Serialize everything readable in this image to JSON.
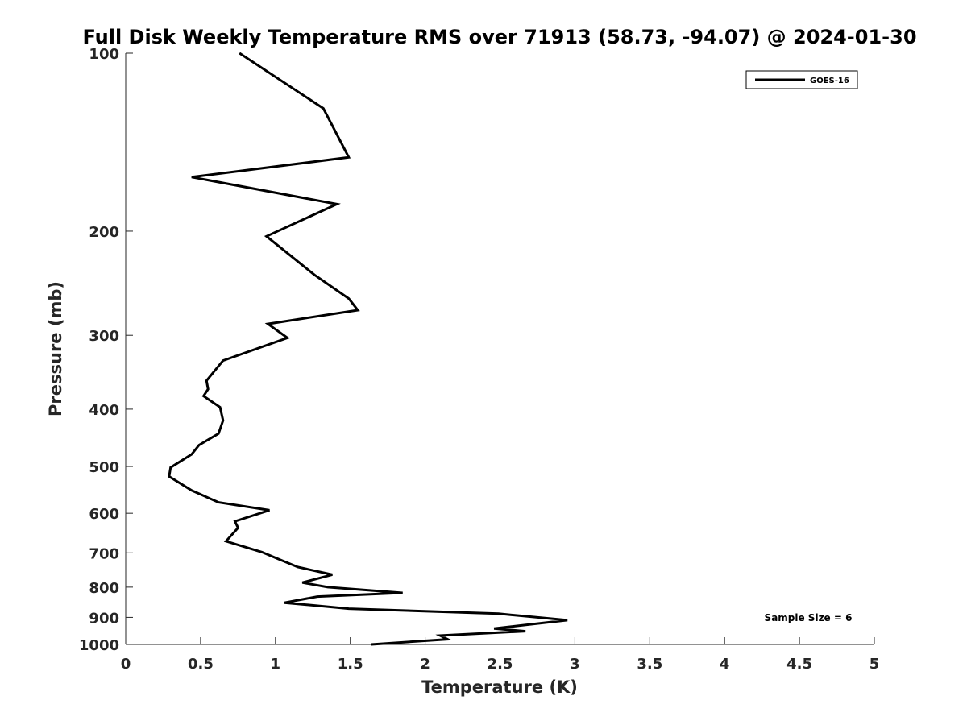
{
  "chart_data": {
    "type": "line",
    "title": "Full Disk Weekly Temperature RMS over 71913 (58.73, -94.07) @ 2024-01-30",
    "xlabel": "Temperature (K)",
    "ylabel": "Pressure (mb)",
    "xlim": [
      0,
      5
    ],
    "ylim": [
      100,
      1000
    ],
    "y_scale": "log",
    "y_reversed": true,
    "grid": false,
    "x_ticks": [
      0,
      0.5,
      1,
      1.5,
      2,
      2.5,
      3,
      3.5,
      4,
      4.5,
      5
    ],
    "x_tick_labels": [
      "0",
      "0.5",
      "1",
      "1.5",
      "2",
      "2.5",
      "3",
      "3.5",
      "4",
      "4.5",
      "5"
    ],
    "y_ticks": [
      100,
      200,
      300,
      400,
      500,
      600,
      700,
      800,
      900,
      1000
    ],
    "y_tick_labels": [
      "100",
      "200",
      "300",
      "400",
      "500",
      "600",
      "700",
      "800",
      "900",
      "1000"
    ],
    "legend_placement": "top-right",
    "annotation": "Sample Size = 6",
    "series": [
      {
        "name": "GOES-16",
        "color": "#000000",
        "x": [
          0.76,
          1.32,
          1.49,
          0.44,
          1.41,
          0.94,
          1.26,
          1.49,
          1.55,
          0.95,
          1.08,
          0.65,
          0.54,
          0.55,
          0.52,
          0.63,
          0.65,
          0.62,
          0.49,
          0.44,
          0.3,
          0.29,
          0.44,
          0.62,
          0.96,
          0.73,
          0.75,
          0.67,
          0.91,
          1.02,
          1.15,
          1.38,
          1.18,
          1.35,
          1.85,
          1.28,
          1.06,
          1.49,
          2.49,
          2.95,
          2.46,
          2.67,
          2.1,
          2.15,
          1.64
        ],
        "y": [
          100,
          124,
          150,
          162,
          180,
          204,
          237,
          260,
          272,
          287,
          303,
          331,
          358,
          370,
          380,
          397,
          418,
          440,
          460,
          477,
          502,
          520,
          549,
          575,
          593,
          619,
          635,
          669,
          698,
          717,
          740,
          762,
          786,
          800,
          818,
          830,
          850,
          870,
          887,
          910,
          940,
          950,
          966,
          980,
          1000
        ]
      }
    ]
  }
}
